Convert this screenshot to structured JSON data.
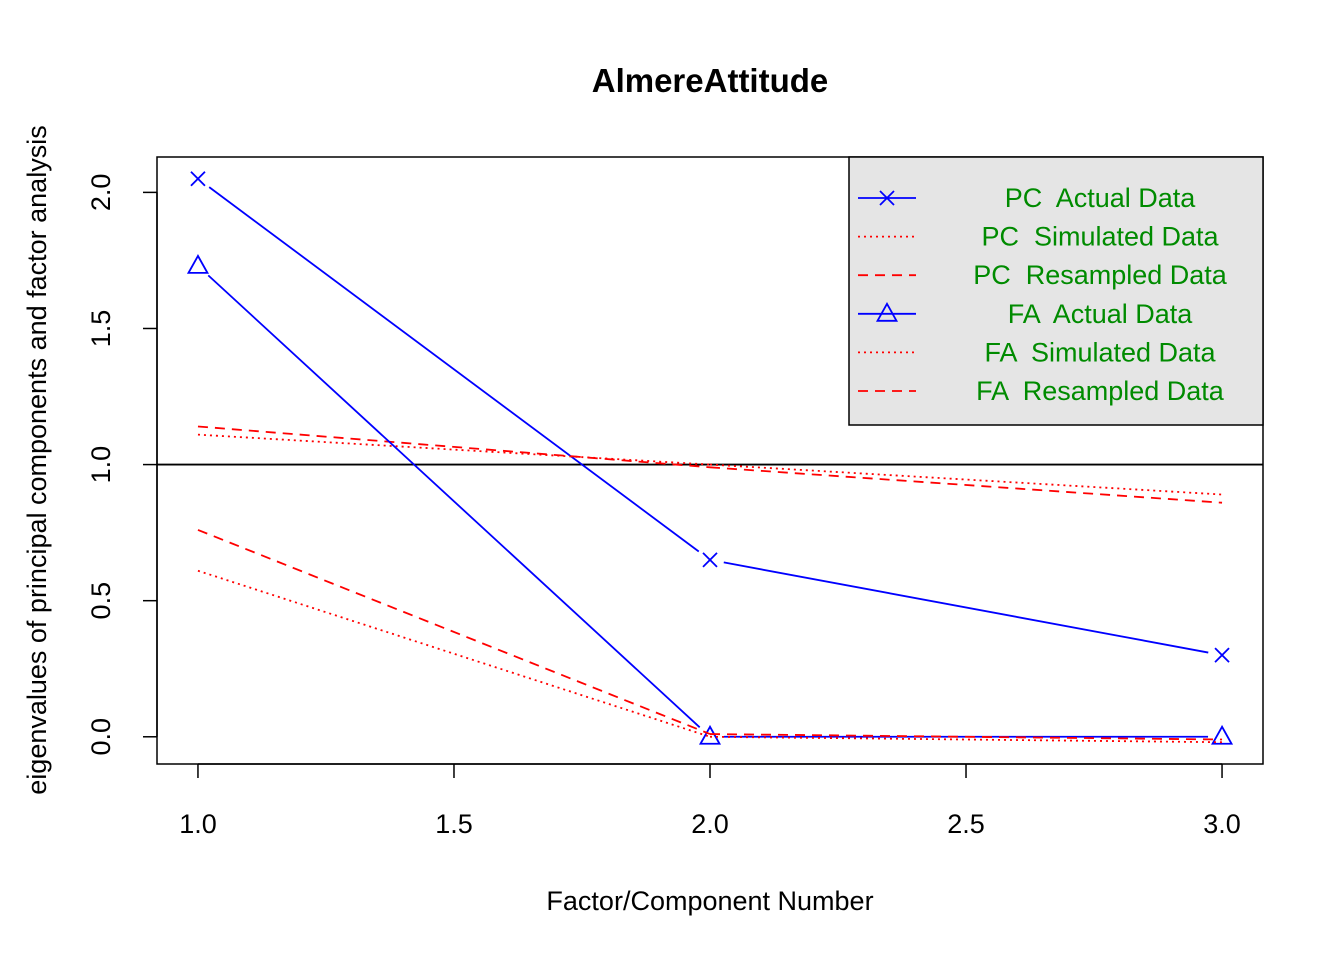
{
  "chart_data": {
    "type": "line",
    "title": "AlmereAttitude",
    "xlabel": "Factor/Component Number",
    "ylabel": "eigenvalues of principal components and factor analysis",
    "x": [
      1,
      2,
      3
    ],
    "xlim": [
      0.92,
      3.08
    ],
    "ylim": [
      -0.1,
      2.13
    ],
    "xticks": [
      "1.0",
      "1.5",
      "2.0",
      "2.5",
      "3.0"
    ],
    "yticks": [
      "0.0",
      "0.5",
      "1.0",
      "1.5",
      "2.0"
    ],
    "reference_line": {
      "y": 1.0,
      "color": "#000000"
    },
    "grid": false,
    "legend_position": "top-right",
    "colors": {
      "actual": "#0000ff",
      "simulated": "#ff0000",
      "legend_text": "#008b00",
      "legend_bg": "#e5e5e5"
    },
    "series": [
      {
        "name": "PC  Actual Data",
        "values": [
          2.05,
          0.65,
          0.3
        ],
        "style": "solid",
        "marker": "x",
        "color": "#0000ff"
      },
      {
        "name": "PC  Simulated Data",
        "values": [
          1.11,
          1.0,
          0.89
        ],
        "style": "dotted",
        "marker": "none",
        "color": "#ff0000"
      },
      {
        "name": "PC  Resampled Data",
        "values": [
          1.14,
          0.99,
          0.86
        ],
        "style": "dashed",
        "marker": "none",
        "color": "#ff0000"
      },
      {
        "name": "FA  Actual Data",
        "values": [
          1.73,
          0.0,
          0.0
        ],
        "style": "solid",
        "marker": "triangle",
        "color": "#0000ff"
      },
      {
        "name": "FA  Simulated Data",
        "values": [
          0.61,
          0.0,
          -0.02
        ],
        "style": "dotted",
        "marker": "none",
        "color": "#ff0000"
      },
      {
        "name": "FA  Resampled Data",
        "values": [
          0.76,
          0.01,
          -0.01
        ],
        "style": "dashed",
        "marker": "none",
        "color": "#ff0000"
      }
    ]
  }
}
